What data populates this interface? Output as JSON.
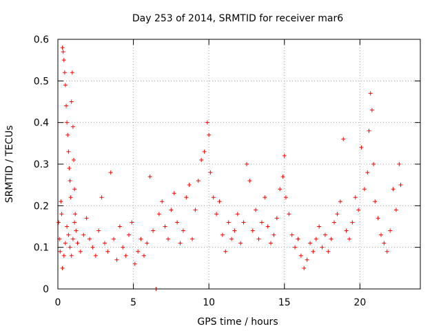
{
  "chart_data": {
    "type": "scatter",
    "title": "Day 253 of 2014, SRMTID for receiver mar6",
    "xlabel": "GPS time / hours",
    "ylabel": "SRMTID / TECUs",
    "xlim": [
      0,
      24
    ],
    "ylim": [
      0,
      0.6
    ],
    "xticks": [
      0,
      5,
      10,
      15,
      20
    ],
    "xtick_labels": [
      "0",
      "5",
      "10",
      "15",
      "20"
    ],
    "yticks": [
      0,
      0.1,
      0.2,
      0.3,
      0.4,
      0.5,
      0.6
    ],
    "ytick_labels": [
      "0",
      "0.1",
      "0.2",
      "0.3",
      "0.4",
      "0.5",
      "0.6"
    ],
    "grid": true,
    "marker": "plus",
    "color": "#ff0000",
    "series": [
      {
        "name": "SRMTID",
        "points": [
          [
            0.05,
            0.16
          ],
          [
            0.1,
            0.12
          ],
          [
            0.15,
            0.09
          ],
          [
            0.2,
            0.21
          ],
          [
            0.25,
            0.18
          ],
          [
            0.3,
            0.58
          ],
          [
            0.35,
            0.57
          ],
          [
            0.4,
            0.55
          ],
          [
            0.45,
            0.52
          ],
          [
            0.5,
            0.49
          ],
          [
            0.55,
            0.44
          ],
          [
            0.6,
            0.4
          ],
          [
            0.65,
            0.37
          ],
          [
            0.7,
            0.33
          ],
          [
            0.75,
            0.29
          ],
          [
            0.8,
            0.26
          ],
          [
            0.85,
            0.22
          ],
          [
            0.9,
            0.45
          ],
          [
            0.95,
            0.52
          ],
          [
            1.0,
            0.39
          ],
          [
            1.05,
            0.31
          ],
          [
            1.1,
            0.24
          ],
          [
            1.15,
            0.18
          ],
          [
            1.2,
            0.14
          ],
          [
            0.3,
            0.05
          ],
          [
            0.4,
            0.08
          ],
          [
            0.5,
            0.11
          ],
          [
            0.6,
            0.15
          ],
          [
            0.7,
            0.13
          ],
          [
            0.8,
            0.1
          ],
          [
            0.9,
            0.08
          ],
          [
            1.0,
            0.12
          ],
          [
            1.1,
            0.16
          ],
          [
            1.3,
            0.11
          ],
          [
            1.5,
            0.09
          ],
          [
            1.7,
            0.13
          ],
          [
            1.9,
            0.17
          ],
          [
            2.1,
            0.12
          ],
          [
            2.3,
            0.1
          ],
          [
            2.5,
            0.08
          ],
          [
            2.7,
            0.14
          ],
          [
            2.9,
            0.22
          ],
          [
            3.1,
            0.11
          ],
          [
            3.3,
            0.09
          ],
          [
            3.5,
            0.28
          ],
          [
            3.7,
            0.12
          ],
          [
            3.9,
            0.07
          ],
          [
            4.1,
            0.15
          ],
          [
            4.3,
            0.1
          ],
          [
            4.5,
            0.08
          ],
          [
            4.7,
            0.13
          ],
          [
            4.9,
            0.16
          ],
          [
            5.1,
            0.06
          ],
          [
            5.3,
            0.09
          ],
          [
            5.5,
            0.12
          ],
          [
            5.7,
            0.08
          ],
          [
            5.9,
            0.11
          ],
          [
            6.1,
            0.27
          ],
          [
            6.3,
            0.14
          ],
          [
            6.5,
            0.0
          ],
          [
            6.7,
            0.18
          ],
          [
            6.9,
            0.21
          ],
          [
            7.1,
            0.15
          ],
          [
            7.3,
            0.12
          ],
          [
            7.5,
            0.19
          ],
          [
            7.7,
            0.23
          ],
          [
            7.9,
            0.16
          ],
          [
            8.1,
            0.11
          ],
          [
            8.3,
            0.14
          ],
          [
            8.5,
            0.22
          ],
          [
            8.7,
            0.25
          ],
          [
            8.9,
            0.12
          ],
          [
            9.1,
            0.19
          ],
          [
            9.3,
            0.26
          ],
          [
            9.5,
            0.31
          ],
          [
            9.7,
            0.33
          ],
          [
            9.9,
            0.4
          ],
          [
            10.0,
            0.37
          ],
          [
            10.1,
            0.28
          ],
          [
            10.3,
            0.22
          ],
          [
            10.5,
            0.18
          ],
          [
            10.7,
            0.21
          ],
          [
            10.9,
            0.13
          ],
          [
            11.1,
            0.09
          ],
          [
            11.3,
            0.16
          ],
          [
            11.5,
            0.12
          ],
          [
            11.7,
            0.14
          ],
          [
            11.9,
            0.18
          ],
          [
            12.1,
            0.11
          ],
          [
            12.3,
            0.16
          ],
          [
            12.5,
            0.3
          ],
          [
            12.7,
            0.26
          ],
          [
            12.9,
            0.14
          ],
          [
            13.1,
            0.19
          ],
          [
            13.3,
            0.12
          ],
          [
            13.5,
            0.16
          ],
          [
            13.7,
            0.22
          ],
          [
            13.9,
            0.15
          ],
          [
            14.1,
            0.11
          ],
          [
            14.3,
            0.13
          ],
          [
            14.5,
            0.17
          ],
          [
            14.7,
            0.24
          ],
          [
            14.9,
            0.27
          ],
          [
            15.0,
            0.32
          ],
          [
            15.1,
            0.22
          ],
          [
            15.3,
            0.18
          ],
          [
            15.5,
            0.13
          ],
          [
            15.7,
            0.1
          ],
          [
            15.9,
            0.12
          ],
          [
            16.1,
            0.08
          ],
          [
            16.3,
            0.05
          ],
          [
            16.5,
            0.07
          ],
          [
            16.7,
            0.11
          ],
          [
            16.9,
            0.09
          ],
          [
            17.1,
            0.12
          ],
          [
            17.3,
            0.15
          ],
          [
            17.5,
            0.1
          ],
          [
            17.7,
            0.13
          ],
          [
            17.9,
            0.09
          ],
          [
            18.1,
            0.12
          ],
          [
            18.3,
            0.16
          ],
          [
            18.5,
            0.18
          ],
          [
            18.7,
            0.21
          ],
          [
            18.9,
            0.36
          ],
          [
            19.1,
            0.14
          ],
          [
            19.3,
            0.12
          ],
          [
            19.5,
            0.16
          ],
          [
            19.7,
            0.22
          ],
          [
            19.9,
            0.19
          ],
          [
            20.1,
            0.34
          ],
          [
            20.3,
            0.24
          ],
          [
            20.5,
            0.28
          ],
          [
            20.6,
            0.38
          ],
          [
            20.7,
            0.47
          ],
          [
            20.8,
            0.43
          ],
          [
            20.9,
            0.3
          ],
          [
            21.0,
            0.21
          ],
          [
            21.2,
            0.17
          ],
          [
            21.4,
            0.13
          ],
          [
            21.6,
            0.11
          ],
          [
            21.8,
            0.09
          ],
          [
            22.0,
            0.14
          ],
          [
            22.2,
            0.24
          ],
          [
            22.4,
            0.19
          ],
          [
            22.6,
            0.3
          ],
          [
            22.7,
            0.25
          ]
        ]
      }
    ]
  }
}
